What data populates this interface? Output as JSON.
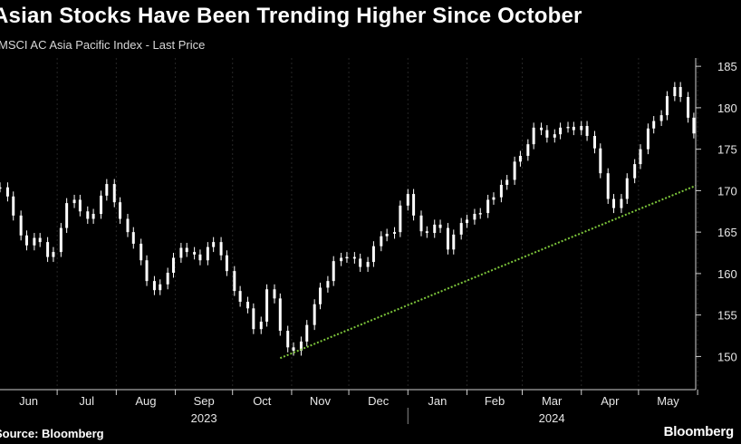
{
  "title": "Asian Stocks Have Been Trending Higher Since October",
  "subtitle": "MSCI AC Asia Pacific Index - Last Price",
  "source": "Source: Bloomberg",
  "brand": "Bloomberg",
  "colors": {
    "background": "#000000",
    "candle": "#ffffff",
    "trendline": "#7dc63b",
    "axis": "#cfcfcf"
  },
  "chart_data": {
    "type": "candlestick",
    "title": "Asian Stocks Have Been Trending Higher Since October",
    "subtitle": "MSCI AC Asia Pacific Index - Last Price",
    "ylim": [
      146,
      186
    ],
    "y_ticks": [
      150,
      155,
      160,
      165,
      170,
      175,
      180,
      185
    ],
    "x_month_labels": [
      "Jun",
      "Jul",
      "Aug",
      "Sep",
      "Oct",
      "Nov",
      "Dec",
      "Jan",
      "Feb",
      "Mar",
      "Apr",
      "May"
    ],
    "x_year_labels": [
      "2023",
      "2024"
    ],
    "x_start": "2023-06-01",
    "x_end": "2024-05-31",
    "series": [
      {
        "values": [
          [
            "2023-06-01",
            170.4
          ],
          [
            "2023-06-05",
            169.3
          ],
          [
            "2023-06-08",
            167.0
          ],
          [
            "2023-06-12",
            164.6
          ],
          [
            "2023-06-15",
            163.4
          ],
          [
            "2023-06-19",
            164.3
          ],
          [
            "2023-06-22",
            163.8
          ],
          [
            "2023-06-26",
            162.0
          ],
          [
            "2023-06-29",
            162.6
          ],
          [
            "2023-07-03",
            165.5
          ],
          [
            "2023-07-06",
            168.5
          ],
          [
            "2023-07-10",
            168.9
          ],
          [
            "2023-07-13",
            167.5
          ],
          [
            "2023-07-17",
            166.6
          ],
          [
            "2023-07-20",
            167.2
          ],
          [
            "2023-07-24",
            169.4
          ],
          [
            "2023-07-27",
            170.8
          ],
          [
            "2023-07-31",
            168.6
          ],
          [
            "2023-08-03",
            166.6
          ],
          [
            "2023-08-07",
            165.0
          ],
          [
            "2023-08-10",
            163.6
          ],
          [
            "2023-08-14",
            161.6
          ],
          [
            "2023-08-17",
            159.1
          ],
          [
            "2023-08-21",
            158.0
          ],
          [
            "2023-08-24",
            158.7
          ],
          [
            "2023-08-28",
            160.1
          ],
          [
            "2023-08-31",
            161.9
          ],
          [
            "2023-09-04",
            163.1
          ],
          [
            "2023-09-07",
            162.6
          ],
          [
            "2023-09-11",
            162.3
          ],
          [
            "2023-09-14",
            161.6
          ],
          [
            "2023-09-18",
            163.2
          ],
          [
            "2023-09-21",
            163.8
          ],
          [
            "2023-09-25",
            162.2
          ],
          [
            "2023-09-28",
            160.3
          ],
          [
            "2023-10-02",
            157.9
          ],
          [
            "2023-10-05",
            156.6
          ],
          [
            "2023-10-09",
            155.8
          ],
          [
            "2023-10-12",
            153.3
          ],
          [
            "2023-10-16",
            154.2
          ],
          [
            "2023-10-19",
            158.1
          ],
          [
            "2023-10-23",
            157.0
          ],
          [
            "2023-10-26",
            153.1
          ],
          [
            "2023-10-30",
            151.1
          ],
          [
            "2023-11-02",
            150.7
          ],
          [
            "2023-11-06",
            151.8
          ],
          [
            "2023-11-09",
            153.8
          ],
          [
            "2023-11-13",
            156.3
          ],
          [
            "2023-11-16",
            158.3
          ],
          [
            "2023-11-20",
            159.1
          ],
          [
            "2023-11-23",
            161.5
          ],
          [
            "2023-11-27",
            161.9
          ],
          [
            "2023-11-30",
            162.0
          ],
          [
            "2023-12-04",
            161.8
          ],
          [
            "2023-12-07",
            160.8
          ],
          [
            "2023-12-11",
            161.4
          ],
          [
            "2023-12-14",
            163.3
          ],
          [
            "2023-12-18",
            164.5
          ],
          [
            "2023-12-21",
            164.8
          ],
          [
            "2023-12-25",
            165.0
          ],
          [
            "2023-12-28",
            168.2
          ],
          [
            "2024-01-01",
            169.6
          ],
          [
            "2024-01-04",
            167.0
          ],
          [
            "2024-01-08",
            165.1
          ],
          [
            "2024-01-11",
            164.9
          ],
          [
            "2024-01-15",
            165.9
          ],
          [
            "2024-01-18",
            165.5
          ],
          [
            "2024-01-22",
            162.9
          ],
          [
            "2024-01-25",
            164.7
          ],
          [
            "2024-01-29",
            166.1
          ],
          [
            "2024-02-01",
            166.5
          ],
          [
            "2024-02-05",
            167.2
          ],
          [
            "2024-02-08",
            167.3
          ],
          [
            "2024-02-12",
            168.9
          ],
          [
            "2024-02-15",
            169.2
          ],
          [
            "2024-02-19",
            170.7
          ],
          [
            "2024-02-22",
            171.3
          ],
          [
            "2024-02-26",
            173.5
          ],
          [
            "2024-02-29",
            174.2
          ],
          [
            "2024-03-04",
            175.6
          ],
          [
            "2024-03-07",
            177.6
          ],
          [
            "2024-03-11",
            177.3
          ],
          [
            "2024-03-14",
            176.4
          ],
          [
            "2024-03-18",
            176.8
          ],
          [
            "2024-03-21",
            177.6
          ],
          [
            "2024-03-25",
            177.7
          ],
          [
            "2024-03-28",
            177.3
          ],
          [
            "2024-04-01",
            177.8
          ],
          [
            "2024-04-04",
            176.6
          ],
          [
            "2024-04-08",
            175.1
          ],
          [
            "2024-04-11",
            172.1
          ],
          [
            "2024-04-15",
            169.0
          ],
          [
            "2024-04-18",
            167.9
          ],
          [
            "2024-04-22",
            169.0
          ],
          [
            "2024-04-25",
            171.5
          ],
          [
            "2024-04-29",
            173.2
          ],
          [
            "2024-05-02",
            175.0
          ],
          [
            "2024-05-06",
            177.5
          ],
          [
            "2024-05-09",
            178.4
          ],
          [
            "2024-05-13",
            179.1
          ],
          [
            "2024-05-16",
            181.4
          ],
          [
            "2024-05-20",
            182.5
          ],
          [
            "2024-05-23",
            181.3
          ],
          [
            "2024-05-27",
            178.8
          ],
          [
            "2024-05-30",
            176.9
          ]
        ]
      }
    ],
    "trendline": {
      "from": [
        "2023-10-26",
        149.8
      ],
      "to": [
        "2024-05-31",
        170.6
      ]
    }
  }
}
